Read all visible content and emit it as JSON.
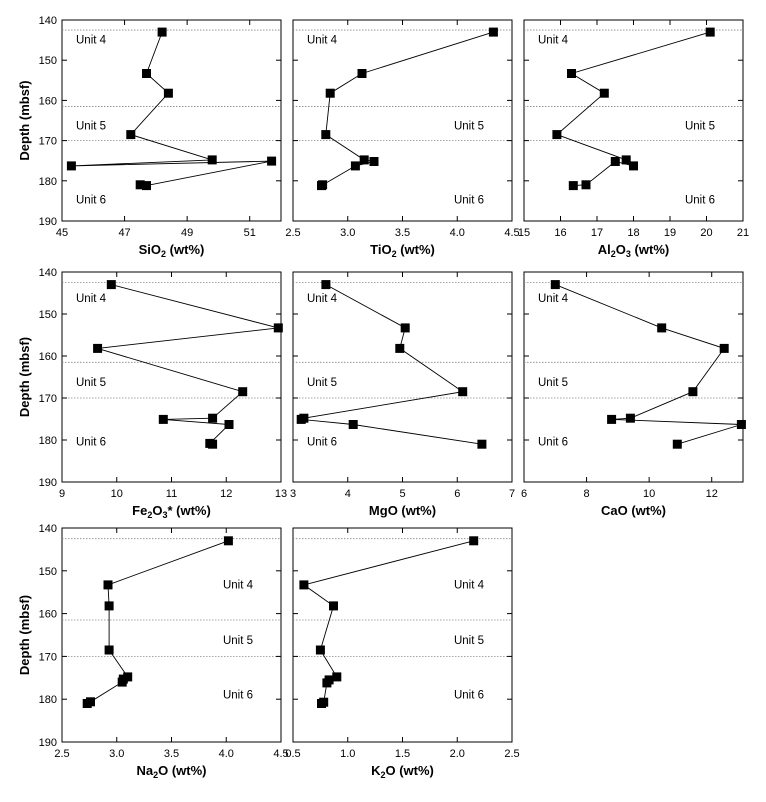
{
  "chart_data": [
    {
      "type": "line",
      "xlabel": "SiO2 (wt%)",
      "xlabel_main": "SiO",
      "xlabel_sub": "2",
      "xlabel_rest": " (wt%)",
      "ylabel": "Depth (mbsf)",
      "xlim": [
        45,
        52
      ],
      "ylim": [
        190,
        140
      ],
      "xticks": [
        "45",
        "47",
        "49",
        "51"
      ],
      "xtick_values": [
        45,
        47,
        49,
        51
      ],
      "yticks": [
        "140",
        "150",
        "160",
        "170",
        "180",
        "190"
      ],
      "ytick_values": [
        140,
        150,
        160,
        170,
        180,
        190
      ],
      "boundaries": [
        142.5,
        161.5,
        170.0
      ],
      "unit_labels": [
        {
          "text": "Unit 4",
          "depth": 144.8,
          "side": "left"
        },
        {
          "text": "Unit 5",
          "depth": 166.2,
          "side": "left"
        },
        {
          "text": "Unit 6",
          "depth": 184.6,
          "side": "left"
        }
      ],
      "x": [
        48.2,
        47.7,
        48.4,
        47.2,
        49.8,
        45.3,
        51.7,
        47.7,
        47.5
      ],
      "y": [
        143.0,
        153.3,
        158.2,
        168.5,
        174.8,
        176.3,
        175.1,
        181.2,
        181.0
      ]
    },
    {
      "type": "line",
      "xlabel": "TiO2 (wt%)",
      "xlabel_main": "TiO",
      "xlabel_sub": "2",
      "xlabel_rest": " (wt%)",
      "ylabel": "",
      "xlim": [
        2.5,
        4.5
      ],
      "ylim": [
        190,
        140
      ],
      "xticks": [
        "2.5",
        "3.0",
        "3.5",
        "4.0",
        "4.5"
      ],
      "xtick_values": [
        2.5,
        3.0,
        3.5,
        4.0,
        4.5
      ],
      "yticks": [],
      "ytick_values": [
        140,
        150,
        160,
        170,
        180,
        190
      ],
      "boundaries": [
        142.5,
        161.5,
        170.0
      ],
      "unit_labels": [
        {
          "text": "Unit 4",
          "depth": 144.8,
          "side": "left"
        },
        {
          "text": "Unit 5",
          "depth": 166.2,
          "side": "right"
        },
        {
          "text": "Unit 6",
          "depth": 184.6,
          "side": "right"
        }
      ],
      "x": [
        4.33,
        3.13,
        2.84,
        2.8,
        3.15,
        3.24,
        3.07,
        2.76,
        2.77
      ],
      "y": [
        143.0,
        153.3,
        158.2,
        168.5,
        174.8,
        175.2,
        176.3,
        181.2,
        181.0
      ]
    },
    {
      "type": "line",
      "xlabel": "Al2O3 (wt%)",
      "xlabel_main": "Al",
      "xlabel_sub": "2",
      "xlabel_rest": "O",
      "xlabel_sub2": "3",
      "xlabel_rest2": " (wt%)",
      "ylabel": "",
      "xlim": [
        15,
        21
      ],
      "ylim": [
        190,
        140
      ],
      "xticks": [
        "15",
        "16",
        "17",
        "18",
        "19",
        "20",
        "21"
      ],
      "xtick_values": [
        15,
        16,
        17,
        18,
        19,
        20,
        21
      ],
      "yticks": [],
      "ytick_values": [
        140,
        150,
        160,
        170,
        180,
        190
      ],
      "boundaries": [
        142.5,
        161.5,
        170.0
      ],
      "unit_labels": [
        {
          "text": "Unit 4",
          "depth": 144.8,
          "side": "left"
        },
        {
          "text": "Unit 5",
          "depth": 166.2,
          "side": "right"
        },
        {
          "text": "Unit 6",
          "depth": 184.6,
          "side": "right"
        }
      ],
      "x": [
        20.1,
        16.3,
        17.2,
        15.9,
        17.8,
        18.0,
        17.5,
        16.7,
        16.35
      ],
      "y": [
        143.0,
        153.3,
        158.2,
        168.5,
        174.8,
        176.3,
        175.2,
        181.0,
        181.2
      ]
    },
    {
      "type": "line",
      "xlabel": "Fe2O3* (wt%)",
      "xlabel_main": "Fe",
      "xlabel_sub": "2",
      "xlabel_rest": "O",
      "xlabel_sub2": "3",
      "xlabel_rest2": "* (wt%)",
      "ylabel": "Depth (mbsf)",
      "xlim": [
        9,
        13
      ],
      "ylim": [
        190,
        140
      ],
      "xticks": [
        "9",
        "10",
        "11",
        "12",
        "13"
      ],
      "xtick_values": [
        9,
        10,
        11,
        12,
        13
      ],
      "yticks": [
        "140",
        "150",
        "160",
        "170",
        "180",
        "190"
      ],
      "ytick_values": [
        140,
        150,
        160,
        170,
        180,
        190
      ],
      "boundaries": [
        142.5,
        161.5,
        170.0
      ],
      "unit_labels": [
        {
          "text": "Unit 4",
          "depth": 146.2,
          "side": "left"
        },
        {
          "text": "Unit 5",
          "depth": 166.2,
          "side": "left"
        },
        {
          "text": "Unit 6",
          "depth": 180.4,
          "side": "left"
        }
      ],
      "x": [
        9.9,
        12.95,
        9.65,
        12.3,
        11.75,
        10.85,
        12.05,
        11.7,
        11.75
      ],
      "y": [
        143.0,
        153.3,
        158.2,
        168.5,
        174.8,
        175.1,
        176.3,
        180.8,
        181.0
      ]
    },
    {
      "type": "line",
      "xlabel": "MgO (wt%)",
      "xlabel_main": "MgO (wt%)",
      "ylabel": "",
      "xlim": [
        3,
        7
      ],
      "ylim": [
        190,
        140
      ],
      "xticks": [
        "3",
        "4",
        "5",
        "6",
        "7"
      ],
      "xtick_values": [
        3,
        4,
        5,
        6,
        7
      ],
      "yticks": [],
      "ytick_values": [
        140,
        150,
        160,
        170,
        180,
        190
      ],
      "boundaries": [
        142.5,
        161.5,
        170.0
      ],
      "unit_labels": [
        {
          "text": "Unit 4",
          "depth": 146.2,
          "side": "left"
        },
        {
          "text": "Unit 5",
          "depth": 166.2,
          "side": "left"
        },
        {
          "text": "Unit 6",
          "depth": 180.4,
          "side": "left"
        }
      ],
      "x": [
        3.6,
        5.05,
        4.95,
        6.1,
        3.2,
        3.15,
        4.1,
        6.45
      ],
      "y": [
        143.0,
        153.3,
        158.2,
        168.5,
        174.8,
        175.1,
        176.3,
        181.0
      ]
    },
    {
      "type": "line",
      "xlabel": "CaO (wt%)",
      "xlabel_main": "CaO (wt%)",
      "ylabel": "",
      "xlim": [
        6,
        13
      ],
      "ylim": [
        190,
        140
      ],
      "xticks": [
        "6",
        "8",
        "10",
        "12"
      ],
      "xtick_values": [
        6,
        8,
        10,
        12
      ],
      "yticks": [],
      "ytick_values": [
        140,
        150,
        160,
        170,
        180,
        190
      ],
      "boundaries": [
        142.5,
        161.5,
        170.0
      ],
      "unit_labels": [
        {
          "text": "Unit 4",
          "depth": 146.2,
          "side": "left"
        },
        {
          "text": "Unit 5",
          "depth": 166.2,
          "side": "left"
        },
        {
          "text": "Unit 6",
          "depth": 180.4,
          "side": "left"
        }
      ],
      "x": [
        7.0,
        10.4,
        12.4,
        11.4,
        9.4,
        8.8,
        12.95,
        10.9
      ],
      "y": [
        143.0,
        153.3,
        158.2,
        168.5,
        174.8,
        175.1,
        176.3,
        181.0
      ]
    },
    {
      "type": "line",
      "xlabel": "Na2O (wt%)",
      "xlabel_main": "Na",
      "xlabel_sub": "2",
      "xlabel_rest": "O (wt%)",
      "ylabel": "Depth (mbsf)",
      "xlim": [
        2.5,
        4.5
      ],
      "ylim": [
        190,
        140
      ],
      "xticks": [
        "2.5",
        "3.0",
        "3.5",
        "4.0",
        "4.5"
      ],
      "xtick_values": [
        2.5,
        3.0,
        3.5,
        4.0,
        4.5
      ],
      "yticks": [
        "140",
        "150",
        "160",
        "170",
        "180",
        "190"
      ],
      "ytick_values": [
        140,
        150,
        160,
        170,
        180,
        190
      ],
      "boundaries": [
        142.5,
        161.5,
        170.0
      ],
      "unit_labels": [
        {
          "text": "Unit 4",
          "depth": 153.2,
          "side": "right"
        },
        {
          "text": "Unit 5",
          "depth": 166.2,
          "side": "right"
        },
        {
          "text": "Unit 6",
          "depth": 178.9,
          "side": "right"
        }
      ],
      "x": [
        4.02,
        2.92,
        2.93,
        2.93,
        3.1,
        3.06,
        3.05,
        2.76,
        2.73
      ],
      "y": [
        143.0,
        153.3,
        158.2,
        168.5,
        174.8,
        175.3,
        176.0,
        180.6,
        181.0
      ]
    },
    {
      "type": "line",
      "xlabel": "K2O (wt%)",
      "xlabel_main": "K",
      "xlabel_sub": "2",
      "xlabel_rest": "O (wt%)",
      "ylabel": "",
      "xlim": [
        0.5,
        2.5
      ],
      "ylim": [
        190,
        140
      ],
      "xticks": [
        "0.5",
        "1.0",
        "1.5",
        "2.0",
        "2.5"
      ],
      "xtick_values": [
        0.5,
        1.0,
        1.5,
        2.0,
        2.5
      ],
      "yticks": [],
      "ytick_values": [
        140,
        150,
        160,
        170,
        180,
        190
      ],
      "boundaries": [
        142.5,
        161.5,
        170.0
      ],
      "unit_labels": [
        {
          "text": "Unit 4",
          "depth": 153.2,
          "side": "right"
        },
        {
          "text": "Unit 5",
          "depth": 166.2,
          "side": "right"
        },
        {
          "text": "Unit 6",
          "depth": 178.9,
          "side": "right"
        }
      ],
      "x": [
        2.15,
        0.6,
        0.87,
        0.75,
        0.9,
        0.83,
        0.81,
        0.78,
        0.76
      ],
      "y": [
        143.0,
        153.3,
        158.2,
        168.5,
        174.8,
        175.5,
        176.2,
        180.7,
        181.0
      ]
    }
  ]
}
